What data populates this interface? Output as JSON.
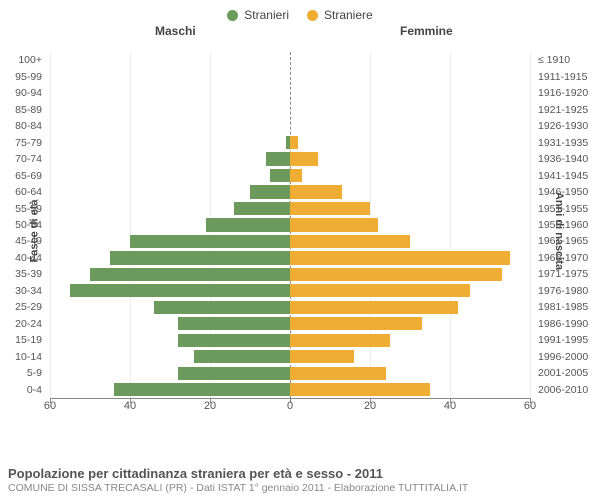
{
  "legend": {
    "male": {
      "label": "Stranieri",
      "color": "#6b9a5c"
    },
    "female": {
      "label": "Straniere",
      "color": "#f0ad33"
    }
  },
  "headers": {
    "male": "Maschi",
    "female": "Femmine"
  },
  "axis": {
    "left_title": "Fasce di età",
    "right_title": "Anni di nascita",
    "xmax": 60,
    "xticks": [
      60,
      40,
      20,
      0,
      20,
      40,
      60
    ],
    "xtick_labels": [
      "60",
      "40",
      "20",
      "0",
      "20",
      "40",
      "60"
    ]
  },
  "colors": {
    "male_bar": "#6b9a5c",
    "female_bar": "#f0ad33",
    "grid": "#eeeeee",
    "axis": "#888888",
    "bg": "#ffffff"
  },
  "rows": [
    {
      "age": "100+",
      "birth": "≤ 1910",
      "m": 0,
      "f": 0
    },
    {
      "age": "95-99",
      "birth": "1911-1915",
      "m": 0,
      "f": 0
    },
    {
      "age": "90-94",
      "birth": "1916-1920",
      "m": 0,
      "f": 0
    },
    {
      "age": "85-89",
      "birth": "1921-1925",
      "m": 0,
      "f": 0
    },
    {
      "age": "80-84",
      "birth": "1926-1930",
      "m": 0,
      "f": 0
    },
    {
      "age": "75-79",
      "birth": "1931-1935",
      "m": 1,
      "f": 2
    },
    {
      "age": "70-74",
      "birth": "1936-1940",
      "m": 6,
      "f": 7
    },
    {
      "age": "65-69",
      "birth": "1941-1945",
      "m": 5,
      "f": 3
    },
    {
      "age": "60-64",
      "birth": "1946-1950",
      "m": 10,
      "f": 13
    },
    {
      "age": "55-59",
      "birth": "1951-1955",
      "m": 14,
      "f": 20
    },
    {
      "age": "50-54",
      "birth": "1956-1960",
      "m": 21,
      "f": 22
    },
    {
      "age": "45-49",
      "birth": "1961-1965",
      "m": 40,
      "f": 30
    },
    {
      "age": "40-44",
      "birth": "1966-1970",
      "m": 45,
      "f": 55
    },
    {
      "age": "35-39",
      "birth": "1971-1975",
      "m": 50,
      "f": 53
    },
    {
      "age": "30-34",
      "birth": "1976-1980",
      "m": 55,
      "f": 45
    },
    {
      "age": "25-29",
      "birth": "1981-1985",
      "m": 34,
      "f": 42
    },
    {
      "age": "20-24",
      "birth": "1986-1990",
      "m": 28,
      "f": 33
    },
    {
      "age": "15-19",
      "birth": "1991-1995",
      "m": 28,
      "f": 25
    },
    {
      "age": "10-14",
      "birth": "1996-2000",
      "m": 24,
      "f": 16
    },
    {
      "age": "5-9",
      "birth": "2001-2005",
      "m": 28,
      "f": 24
    },
    {
      "age": "0-4",
      "birth": "2006-2010",
      "m": 44,
      "f": 35
    }
  ],
  "caption": {
    "title": "Popolazione per cittadinanza straniera per età e sesso - 2011",
    "subtitle": "COMUNE DI SISSA TRECASALI (PR) - Dati ISTAT 1° gennaio 2011 - Elaborazione TUTTITALIA.IT"
  }
}
